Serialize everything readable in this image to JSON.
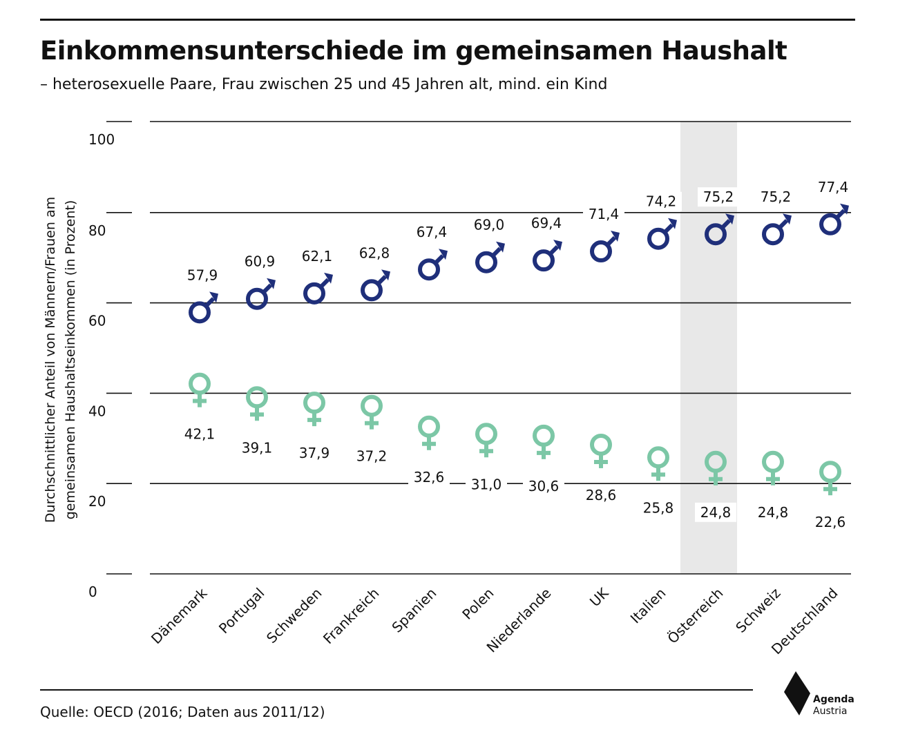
{
  "header": {
    "title": "Einkommensunterschiede im gemeinsamen Haushalt",
    "subtitle": "– heterosexuelle Paare, Frau zwischen 25 und 45 Jahren alt, mind. ein Kind"
  },
  "footer": {
    "source": "Quelle: OECD (2016; Daten aus 2011/12)",
    "logo_name": "Agenda",
    "logo_sub": "Austria"
  },
  "chart_data": {
    "type": "scatter",
    "title": "Einkommensunterschiede im gemeinsamen Haushalt",
    "subtitle": "– heterosexuelle Paare, Frau zwischen 25 und 45 Jahren alt, mind. ein Kind",
    "ylabel_lines": [
      "Durchschnittlicher Anteil von Männern/Frauen am",
      "gemeinsamen Haushaltseinkommen (in Prozent)"
    ],
    "xlabel": "",
    "ylim": [
      0,
      100
    ],
    "yticks": [
      0,
      20,
      40,
      60,
      80,
      100
    ],
    "categories": [
      "Dänemark",
      "Portugal",
      "Schweden",
      "Frankreich",
      "Spanien",
      "Polen",
      "Niederlande",
      "UK",
      "Italien",
      "Österreich",
      "Schweiz",
      "Deutschland"
    ],
    "series": [
      {
        "marker": "male-symbol",
        "color": "#1f2f7a",
        "values": [
          57.9,
          60.9,
          62.1,
          62.8,
          67.4,
          69.0,
          69.4,
          71.4,
          74.2,
          75.2,
          75.2,
          77.4
        ],
        "labels": [
          "57,9",
          "60,9",
          "62,1",
          "62,8",
          "67,4",
          "69,0",
          "69,4",
          "71,4",
          "74,2",
          "75,2",
          "75,2",
          "77,4"
        ]
      },
      {
        "marker": "female-symbol",
        "color": "#7cc7a6",
        "values": [
          42.1,
          39.1,
          37.9,
          37.2,
          32.6,
          31.0,
          30.6,
          28.6,
          25.8,
          24.8,
          24.8,
          22.6
        ],
        "labels": [
          "42,1",
          "39,1",
          "37,9",
          "37,2",
          "32,6",
          "31,0",
          "30,6",
          "28,6",
          "25,8",
          "24,8",
          "24,8",
          "22,6"
        ]
      }
    ],
    "highlight": "Österreich",
    "highlight_color": "#e8e8e8",
    "grid": true,
    "legend": "none"
  }
}
